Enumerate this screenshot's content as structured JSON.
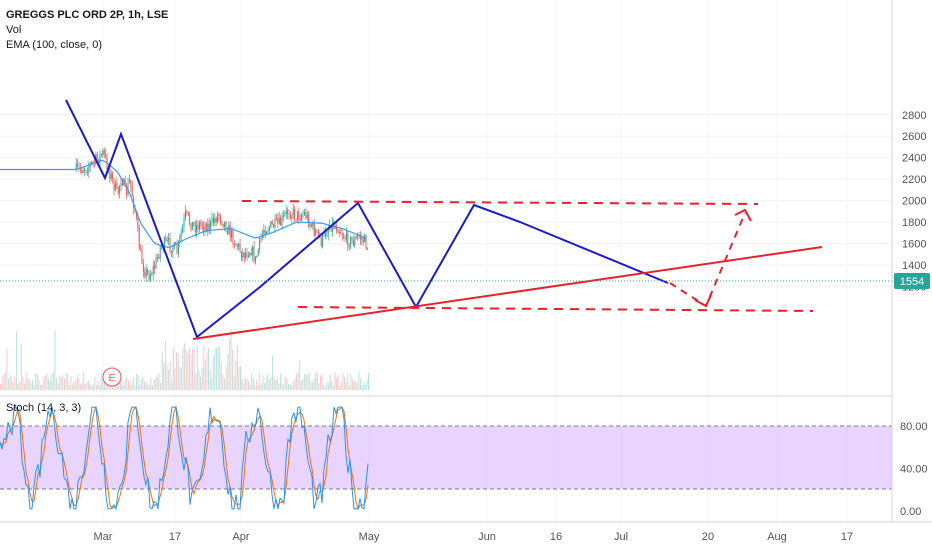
{
  "legend": {
    "title": "GREGGS PLC ORD 2P, 1h, LSE",
    "vol": "Vol",
    "ema": "EMA (100, close, 0)",
    "stoch": "Stoch (14, 3, 3)"
  },
  "price_badge": {
    "value": "1554",
    "color": "#26a69a"
  },
  "earnings_marker": "E",
  "colors": {
    "pattern_line": "#1a1ac8",
    "trend_line": "#e8222a",
    "ema_line": "#3c9ae8",
    "stoch_band": "#e1c4ff",
    "candle_up": "#26a69a",
    "candle_down": "#ef5350"
  },
  "chart_data": [
    {
      "type": "line",
      "title": "",
      "x_ticks": [
        "Mar",
        "17",
        "Apr",
        "May",
        "Jun",
        "16",
        "Jul",
        "20",
        "Aug",
        "17"
      ],
      "y_ticks": [
        1200,
        1400,
        1600,
        1800,
        2000,
        2200,
        2400,
        2600,
        2800
      ],
      "ylim": [
        1050,
        2850
      ],
      "last_price": 1554,
      "series": [
        {
          "points": [
            [
              "Feb 17",
              2280
            ],
            [
              "Feb 24",
              2330
            ],
            [
              "Mar 1",
              2440
            ],
            [
              "Mar 2",
              2390
            ],
            [
              "Mar 8",
              2050
            ],
            [
              "Mar 10",
              2240
            ],
            [
              "Mar 12",
              2050
            ],
            [
              "Mar 14",
              2190
            ],
            [
              "Mar 17",
              1850
            ],
            [
              "Mar 19",
              1500
            ],
            [
              "Mar 21",
              1360
            ],
            [
              "Mar 23",
              1300
            ],
            [
              "Mar 26",
              1380
            ],
            [
              "Mar 29",
              1580
            ],
            [
              "Apr 2",
              1600
            ],
            [
              "Apr 6",
              1520
            ],
            [
              "Apr 10",
              1860
            ],
            [
              "Apr 14",
              1760
            ],
            [
              "Apr 18",
              1780
            ],
            [
              "Apr 22",
              1760
            ],
            [
              "Apr 26",
              1880
            ],
            [
              "Apr 30",
              1760
            ],
            [
              "May 4",
              1620
            ],
            [
              "May 8",
              1500
            ],
            [
              "May 12",
              1550
            ],
            [
              "May 14",
              1440
            ],
            [
              "May 18",
              1740
            ],
            [
              "May 22",
              1760
            ],
            [
              "May 26",
              1780
            ],
            [
              "May 30",
              1910
            ],
            [
              "Jun 3",
              1860
            ],
            [
              "Jun 7",
              1880
            ],
            [
              "Jun 11",
              1740
            ],
            [
              "Jun 15",
              1620
            ],
            [
              "Jun 19",
              1780
            ],
            [
              "Jun 23",
              1760
            ],
            [
              "Jun 27",
              1640
            ],
            [
              "Jul 1",
              1610
            ],
            [
              "Jul 3",
              1670
            ],
            [
              "Jul 6",
              1620
            ],
            [
              "Jul 8",
              1554
            ]
          ]
        },
        {
          "points": [
            [
              "Feb 17",
              2290
            ],
            [
              "Mar 1",
              2380
            ],
            [
              "Mar 8",
              2270
            ],
            [
              "Mar 14",
              2070
            ],
            [
              "Mar 19",
              1800
            ],
            [
              "Mar 26",
              1600
            ],
            [
              "Apr 2",
              1560
            ],
            [
              "Apr 10",
              1640
            ],
            [
              "Apr 20",
              1720
            ],
            [
              "May 2",
              1740
            ],
            [
              "May 14",
              1650
            ],
            [
              "May 22",
              1700
            ],
            [
              "Jun 3",
              1800
            ],
            [
              "Jun 15",
              1790
            ],
            [
              "Jun 25",
              1740
            ],
            [
              "Jul 3",
              1680
            ],
            [
              "Jul 8",
              1630
            ]
          ]
        }
      ]
    },
    {
      "type": "line",
      "title": "",
      "y_ticks": [
        "0.00",
        "40.00",
        "80.00"
      ],
      "ylim": [
        -10,
        105
      ],
      "band": [
        20,
        80
      ]
    }
  ]
}
